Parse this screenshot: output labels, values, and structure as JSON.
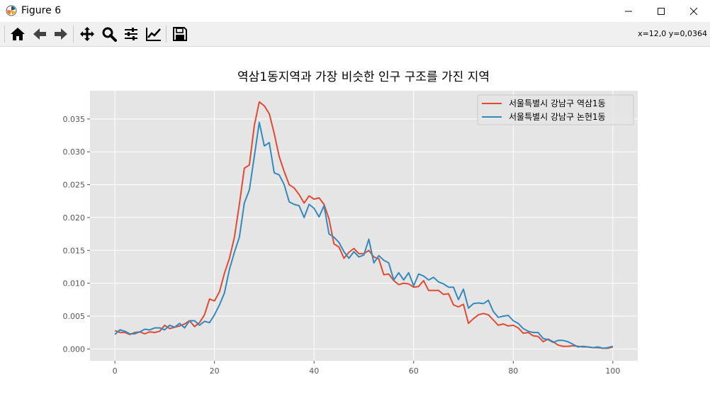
{
  "window": {
    "title": "Figure 6"
  },
  "toolbar": {
    "buttons": [
      "home-icon",
      "back-arrow-icon",
      "forward-arrow-icon",
      "pan-icon",
      "zoom-icon",
      "configure-subplots-icon",
      "edit-axis-icon",
      "save-icon"
    ],
    "coords": "x=12,0 y=0,0364"
  },
  "colors": {
    "plot_bg": "#e5e5e5",
    "grid": "#ffffff",
    "series1": "#e24a33",
    "series2": "#348abd"
  },
  "chart_data": {
    "type": "line",
    "title": "역삼1동지역과 가장 비슷한 인구 구조를 가진 지역",
    "xlabel": "",
    "ylabel": "",
    "xlim": [
      -5,
      105
    ],
    "ylim": [
      -0.0018,
      0.0393
    ],
    "xticks": [
      0,
      20,
      40,
      60,
      80,
      100
    ],
    "xtick_labels": [
      "0",
      "20",
      "40",
      "60",
      "80",
      "100"
    ],
    "yticks": [
      0,
      0.005,
      0.01,
      0.015,
      0.02,
      0.025,
      0.03,
      0.035
    ],
    "ytick_labels": [
      "0.000",
      "0.005",
      "0.010",
      "0.015",
      "0.020",
      "0.025",
      "0.030",
      "0.035"
    ],
    "grid": true,
    "legend_position": "top-right",
    "series": [
      {
        "name": "서울특별시 강남구 역삼1동",
        "color": "#e24a33",
        "values": [
          0.0028,
          0.0025,
          0.0025,
          0.0022,
          0.0025,
          0.0026,
          0.0023,
          0.0026,
          0.0025,
          0.0027,
          0.0036,
          0.0031,
          0.0033,
          0.0035,
          0.0038,
          0.0043,
          0.0034,
          0.004,
          0.0052,
          0.0076,
          0.0073,
          0.0087,
          0.0115,
          0.0138,
          0.017,
          0.022,
          0.0275,
          0.028,
          0.034,
          0.0376,
          0.037,
          0.0358,
          0.0328,
          0.0293,
          0.027,
          0.025,
          0.0245,
          0.0235,
          0.0222,
          0.0233,
          0.0228,
          0.023,
          0.022,
          0.0198,
          0.016,
          0.0155,
          0.0138,
          0.0147,
          0.0153,
          0.0145,
          0.0145,
          0.015,
          0.014,
          0.0137,
          0.0113,
          0.0114,
          0.0104,
          0.0098,
          0.01,
          0.0099,
          0.0094,
          0.0095,
          0.0104,
          0.0089,
          0.0089,
          0.0089,
          0.0083,
          0.0084,
          0.0067,
          0.0064,
          0.0068,
          0.0039,
          0.0046,
          0.0052,
          0.0054,
          0.0052,
          0.0044,
          0.0036,
          0.0038,
          0.0035,
          0.0036,
          0.0032,
          0.0024,
          0.0025,
          0.002,
          0.0019,
          0.0011,
          0.0015,
          0.0011,
          0.0006,
          0.0004,
          0.0004,
          0.0005,
          0.0004,
          0.0003,
          0.0003,
          0.0002,
          0.0002,
          0.0001,
          0.0001,
          0.0003
        ]
      },
      {
        "name": "서울특별시 강남구 논현1동",
        "color": "#348abd",
        "values": [
          0.0022,
          0.0029,
          0.0027,
          0.0023,
          0.0023,
          0.0026,
          0.003,
          0.0029,
          0.0032,
          0.0032,
          0.0029,
          0.0036,
          0.0033,
          0.0039,
          0.0032,
          0.0043,
          0.0043,
          0.0036,
          0.0042,
          0.004,
          0.0052,
          0.0067,
          0.0085,
          0.0121,
          0.0147,
          0.017,
          0.0222,
          0.0242,
          0.0293,
          0.0345,
          0.0309,
          0.0314,
          0.0268,
          0.0265,
          0.025,
          0.0224,
          0.022,
          0.0218,
          0.02,
          0.022,
          0.0214,
          0.0201,
          0.0218,
          0.0175,
          0.017,
          0.0162,
          0.0148,
          0.0138,
          0.0148,
          0.014,
          0.0143,
          0.0167,
          0.0131,
          0.0142,
          0.0135,
          0.0131,
          0.0105,
          0.0116,
          0.0105,
          0.0116,
          0.0096,
          0.0114,
          0.0111,
          0.0105,
          0.0109,
          0.0102,
          0.0099,
          0.0094,
          0.0094,
          0.0075,
          0.0091,
          0.0062,
          0.0069,
          0.007,
          0.0069,
          0.0074,
          0.0057,
          0.0048,
          0.005,
          0.0051,
          0.0043,
          0.0039,
          0.0031,
          0.0027,
          0.0025,
          0.0025,
          0.0016,
          0.0014,
          0.001,
          0.0013,
          0.0013,
          0.0011,
          0.0007,
          0.0003,
          0.0004,
          0.0003,
          0.0002,
          0.0003,
          0.0001,
          0.0002,
          0.0004
        ]
      }
    ]
  }
}
